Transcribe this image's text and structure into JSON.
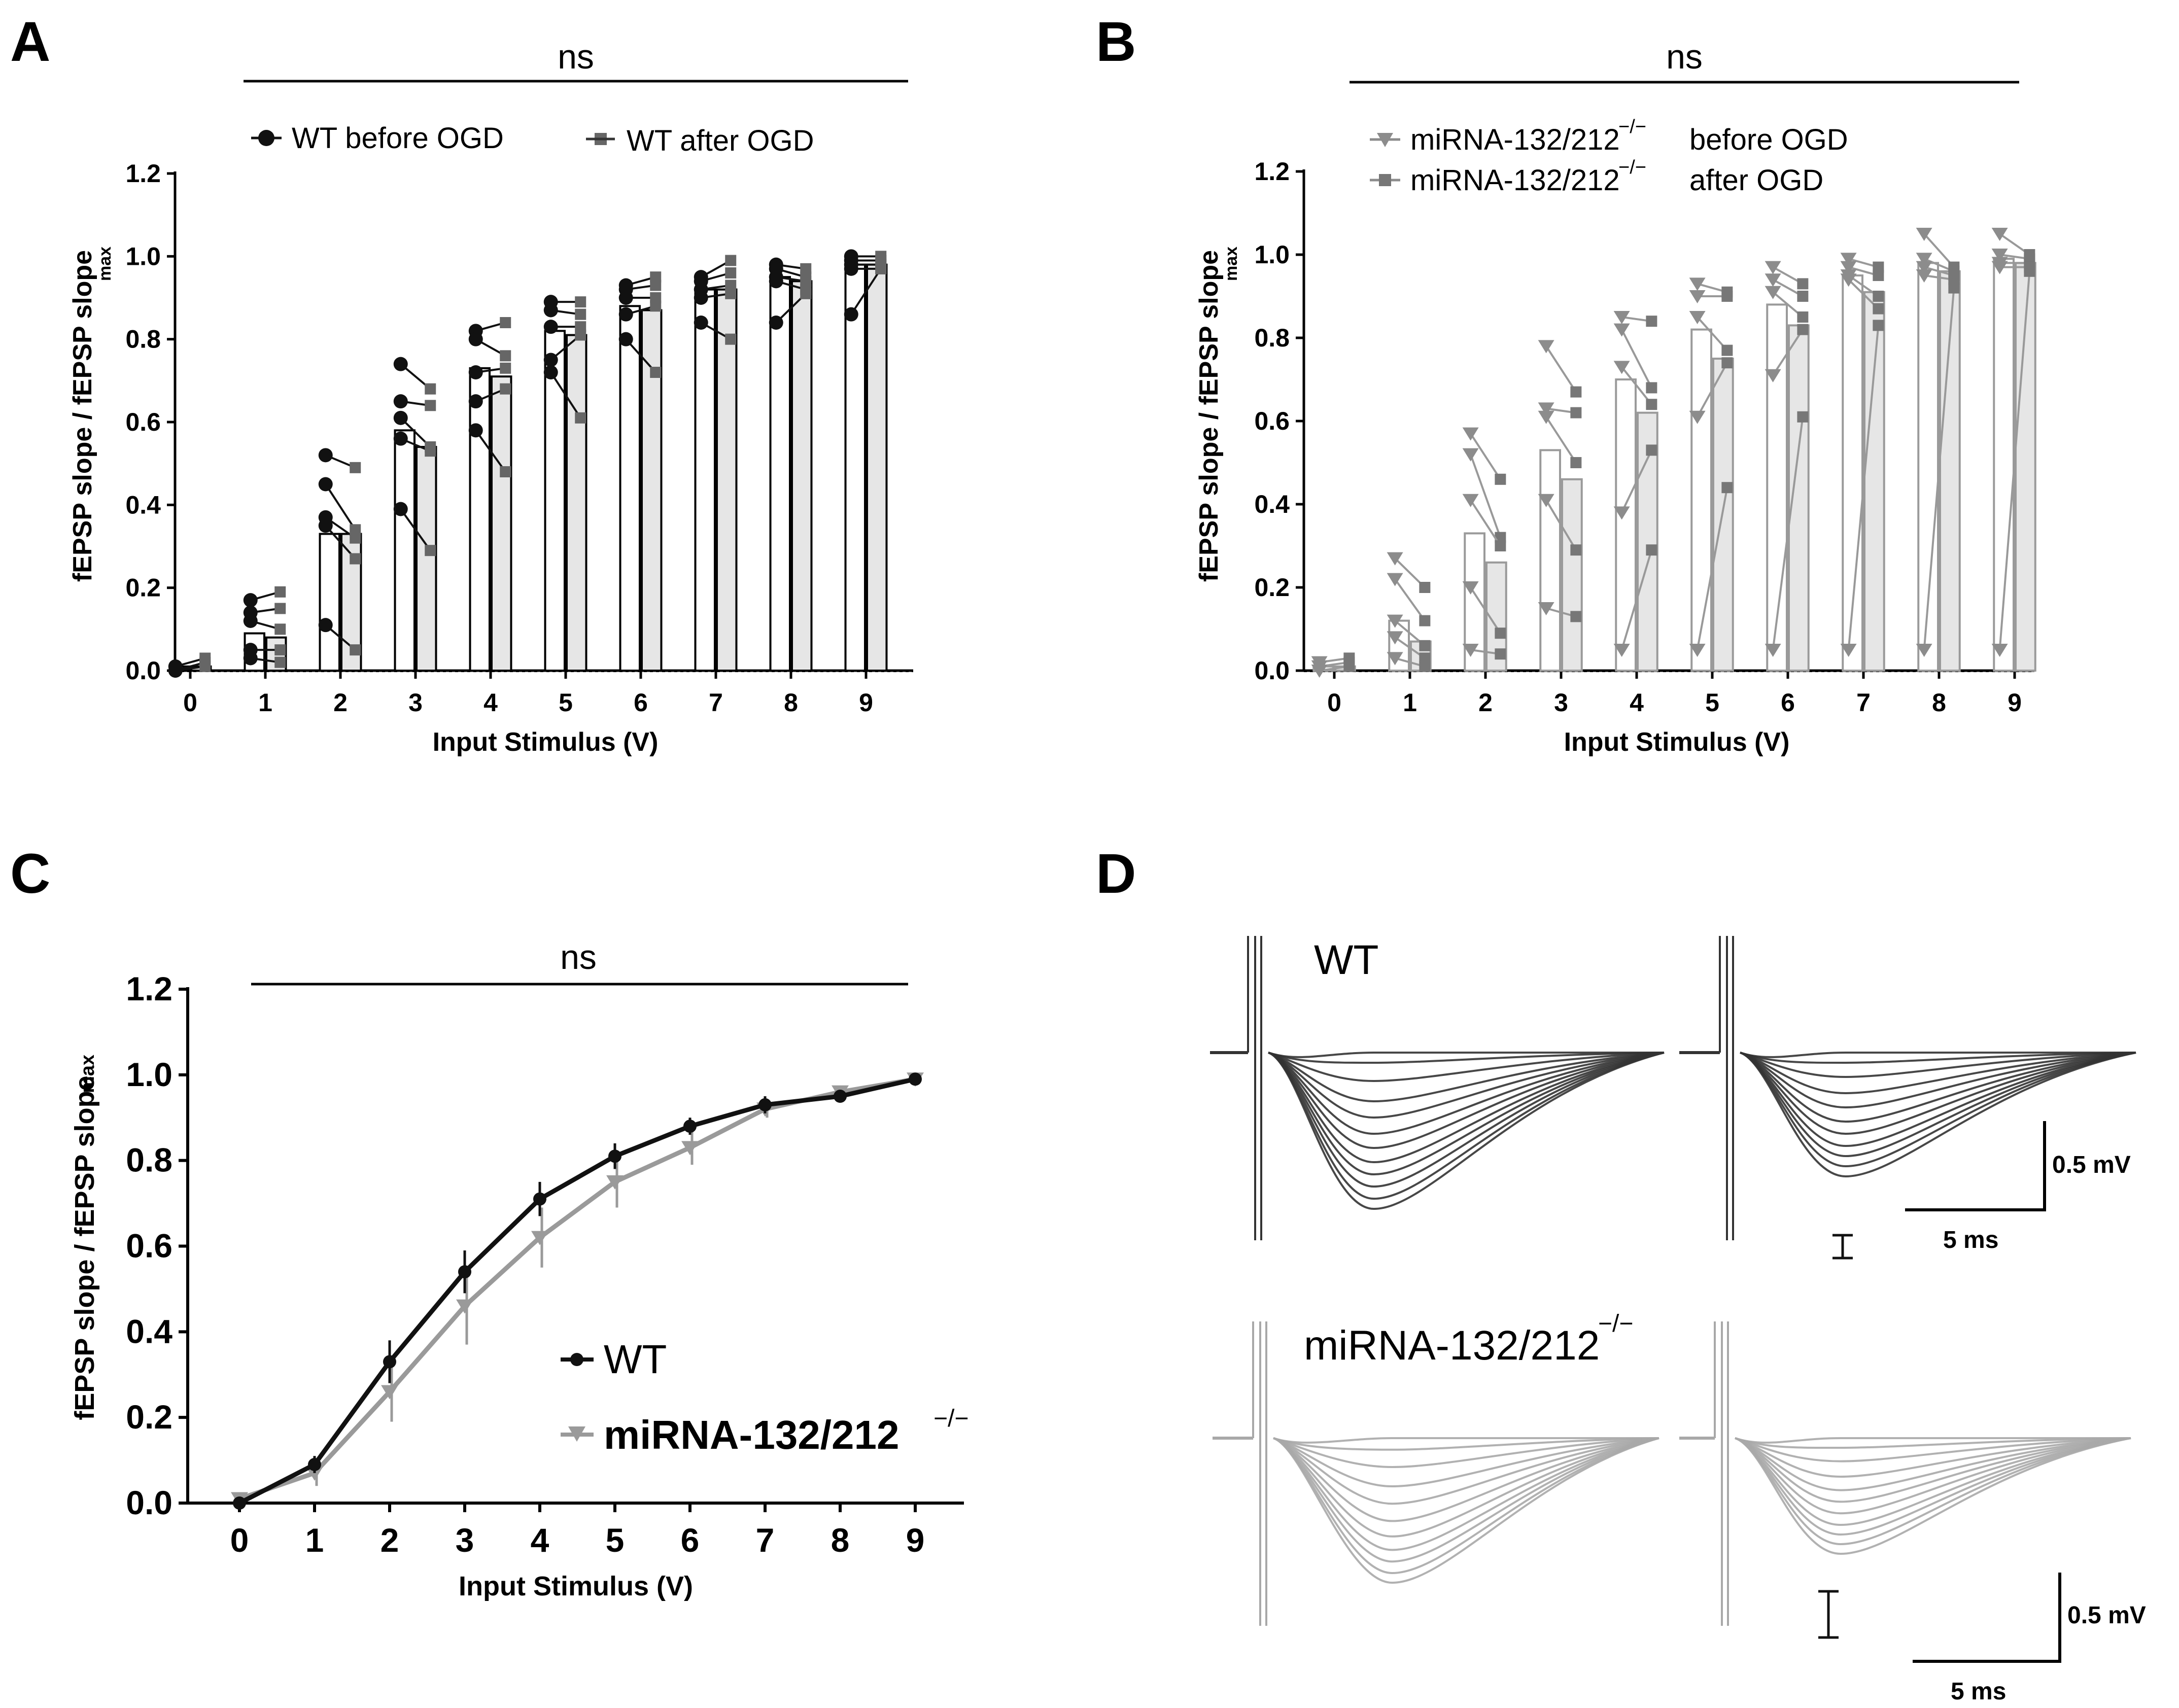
{
  "panels": {
    "A": "A",
    "B": "B",
    "C": "C",
    "D": "D"
  },
  "chart_data": [
    {
      "id": "A",
      "type": "bar",
      "annotation": "ns",
      "xlabel": "Input Stimulus (V)",
      "ylabel": "fEPSP slope / fEPSP slope",
      "ylabel_sub": "max",
      "ylim": [
        0,
        1.2
      ],
      "yticks": [
        "0.0",
        "0.2",
        "0.4",
        "0.6",
        "0.8",
        "1.0",
        "1.2"
      ],
      "categories": [
        "0",
        "1",
        "2",
        "3",
        "4",
        "5",
        "6",
        "7",
        "8",
        "9"
      ],
      "legend": [
        "WT before OGD",
        "WT after OGD"
      ],
      "colors": {
        "before": "#111111",
        "after": "#666666",
        "bar_before": "#ffffff",
        "bar_after": "#e6e6e6"
      },
      "series": [
        {
          "name": "WT before OGD",
          "values": [
            0.01,
            0.09,
            0.33,
            0.58,
            0.73,
            0.82,
            0.88,
            0.92,
            0.95,
            0.98
          ]
        },
        {
          "name": "WT after OGD",
          "values": [
            0.01,
            0.08,
            0.33,
            0.54,
            0.71,
            0.81,
            0.87,
            0.92,
            0.94,
            0.98
          ]
        }
      ],
      "points_before": [
        [
          0.01,
          0.0,
          0.0
        ],
        [
          0.17,
          0.14,
          0.12,
          0.05,
          0.03
        ],
        [
          0.52,
          0.45,
          0.37,
          0.35,
          0.11
        ],
        [
          0.74,
          0.65,
          0.61,
          0.56,
          0.39
        ],
        [
          0.82,
          0.8,
          0.72,
          0.65,
          0.58
        ],
        [
          0.89,
          0.87,
          0.83,
          0.75,
          0.72
        ],
        [
          0.93,
          0.92,
          0.9,
          0.86,
          0.8
        ],
        [
          0.95,
          0.94,
          0.92,
          0.9,
          0.84
        ],
        [
          0.98,
          0.97,
          0.95,
          0.94,
          0.84
        ],
        [
          1.0,
          0.99,
          0.98,
          0.97,
          0.86
        ]
      ],
      "points_after": [
        [
          0.03,
          0.02,
          0.01
        ],
        [
          0.19,
          0.15,
          0.1,
          0.05,
          0.02
        ],
        [
          0.49,
          0.34,
          0.32,
          0.27,
          0.05
        ],
        [
          0.68,
          0.64,
          0.54,
          0.53,
          0.29
        ],
        [
          0.84,
          0.76,
          0.73,
          0.68,
          0.48
        ],
        [
          0.89,
          0.86,
          0.83,
          0.81,
          0.61
        ],
        [
          0.95,
          0.93,
          0.9,
          0.88,
          0.72
        ],
        [
          0.99,
          0.96,
          0.93,
          0.91,
          0.8
        ],
        [
          0.97,
          0.95,
          0.94,
          0.92,
          0.91
        ],
        [
          1.0,
          0.99,
          0.98,
          0.97,
          0.97
        ]
      ]
    },
    {
      "id": "B",
      "type": "bar",
      "annotation": "ns",
      "xlabel": "Input Stimulus (V)",
      "ylabel": "fEPSP slope / fEPSP slope",
      "ylabel_sub": "max",
      "ylim": [
        0,
        1.2
      ],
      "yticks": [
        "0.0",
        "0.2",
        "0.4",
        "0.6",
        "0.8",
        "1.0",
        "1.2"
      ],
      "categories": [
        "0",
        "1",
        "2",
        "3",
        "4",
        "5",
        "6",
        "7",
        "8",
        "9"
      ],
      "legend": [
        {
          "name": "miRNA-132/212",
          "sup": "−/−",
          "suffix": "before OGD"
        },
        {
          "name": "miRNA-132/212",
          "sup": "−/−",
          "suffix": "after OGD"
        }
      ],
      "colors": {
        "before": "#8c8c8c",
        "after": "#777777",
        "bar_before": "#ffffff",
        "bar_after": "#e6e6e6",
        "bar_edge": "#9a9a9a"
      },
      "series": [
        {
          "name": "before OGD",
          "values": [
            0.01,
            0.12,
            0.33,
            0.53,
            0.7,
            0.82,
            0.88,
            0.95,
            0.98,
            0.99
          ]
        },
        {
          "name": "after OGD",
          "values": [
            0.01,
            0.07,
            0.26,
            0.46,
            0.62,
            0.75,
            0.83,
            0.91,
            0.96,
            0.98
          ]
        }
      ],
      "points_before": [
        [
          0.02,
          0.01,
          0.0
        ],
        [
          0.27,
          0.22,
          0.12,
          0.08,
          0.03
        ],
        [
          0.57,
          0.52,
          0.41,
          0.2,
          0.05
        ],
        [
          0.78,
          0.63,
          0.61,
          0.41,
          0.15
        ],
        [
          0.85,
          0.82,
          0.73,
          0.38,
          0.05
        ],
        [
          0.93,
          0.9,
          0.85,
          0.61,
          0.05
        ],
        [
          0.97,
          0.94,
          0.91,
          0.71,
          0.05
        ],
        [
          0.99,
          0.97,
          0.95,
          0.94,
          0.05
        ],
        [
          1.05,
          0.99,
          0.97,
          0.95,
          0.05
        ],
        [
          1.05,
          1.0,
          0.98,
          0.97,
          0.05
        ]
      ],
      "points_after": [
        [
          0.03,
          0.02,
          0.01
        ],
        [
          0.2,
          0.12,
          0.06,
          0.03,
          0.01
        ],
        [
          0.46,
          0.32,
          0.3,
          0.09,
          0.04
        ],
        [
          0.67,
          0.62,
          0.5,
          0.29,
          0.13
        ],
        [
          0.84,
          0.68,
          0.64,
          0.53,
          0.29
        ],
        [
          0.91,
          0.9,
          0.77,
          0.74,
          0.44
        ],
        [
          0.93,
          0.9,
          0.85,
          0.82,
          0.61
        ],
        [
          0.97,
          0.95,
          0.9,
          0.87,
          0.83
        ],
        [
          0.97,
          0.96,
          0.95,
          0.94,
          0.92
        ],
        [
          1.0,
          0.99,
          0.98,
          0.97,
          0.96
        ]
      ]
    },
    {
      "id": "C",
      "type": "line",
      "annotation": "ns",
      "xlabel": "Input Stimulus (V)",
      "ylabel": "fEPSP slope / fEPSP slope",
      "ylabel_sub": "max",
      "ylim": [
        0,
        1.2
      ],
      "yticks": [
        "0.0",
        "0.2",
        "0.4",
        "0.6",
        "0.8",
        "1.0",
        "1.2"
      ],
      "x": [
        0,
        1,
        2,
        3,
        4,
        5,
        6,
        7,
        8,
        9
      ],
      "xticks": [
        "0",
        "1",
        "2",
        "3",
        "4",
        "5",
        "6",
        "7",
        "8",
        "9"
      ],
      "series": [
        {
          "name": "WT",
          "color": "#111111",
          "values": [
            0.0,
            0.09,
            0.33,
            0.54,
            0.71,
            0.81,
            0.88,
            0.93,
            0.95,
            0.99
          ],
          "err": [
            0.01,
            0.02,
            0.05,
            0.05,
            0.04,
            0.03,
            0.02,
            0.02,
            0.01,
            0.01
          ]
        },
        {
          "name": "miRNA-132/212",
          "sup": "−/−",
          "color": "#9a9a9a",
          "values": [
            0.01,
            0.07,
            0.26,
            0.46,
            0.62,
            0.75,
            0.83,
            0.92,
            0.96,
            0.99
          ],
          "err": [
            0.01,
            0.03,
            0.07,
            0.09,
            0.07,
            0.06,
            0.04,
            0.02,
            0.01,
            0.01
          ]
        }
      ],
      "legend_position": "center-right"
    }
  ],
  "panelD": {
    "labels": {
      "wt": "WT",
      "ko": "miRNA-132/212",
      "ko_sup": "−/−"
    },
    "scale_top": {
      "v": "0.5 mV",
      "t": "5 ms"
    },
    "scale_bottom": {
      "v": "0.5 mV",
      "t": "5 ms"
    },
    "colors": {
      "wt": "#333333",
      "ko": "#a8a8a8"
    },
    "trace_depths_wt_left": [
      0.0,
      0.05,
      0.14,
      0.24,
      0.32,
      0.4,
      0.47,
      0.54,
      0.6,
      0.66,
      0.72,
      0.77
    ],
    "trace_depths_wt_right": [
      0.0,
      0.05,
      0.12,
      0.2,
      0.27,
      0.34,
      0.4,
      0.46,
      0.51,
      0.56,
      0.61
    ],
    "trace_depths_ko_left": [
      0.0,
      0.06,
      0.15,
      0.25,
      0.34,
      0.43,
      0.51,
      0.58,
      0.64,
      0.7,
      0.75
    ],
    "trace_depths_ko_right": [
      0.0,
      0.05,
      0.12,
      0.2,
      0.27,
      0.33,
      0.39,
      0.45,
      0.5,
      0.55,
      0.6
    ]
  }
}
